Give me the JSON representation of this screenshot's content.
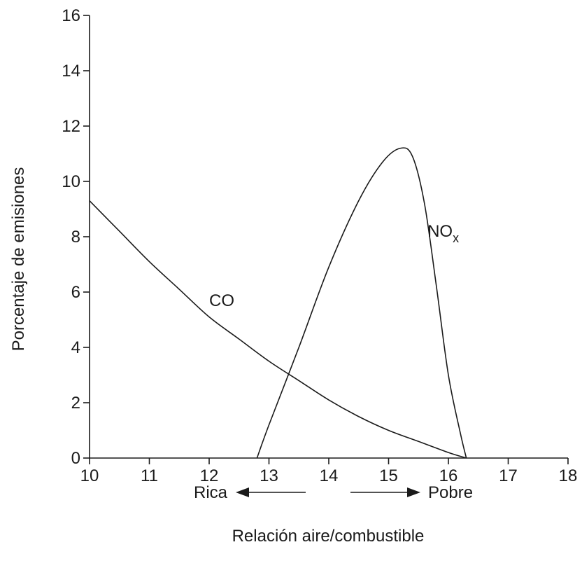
{
  "chart_data": {
    "type": "line",
    "xlabel": "Relación aire/combustible",
    "ylabel": "Porcentaje de emisiones",
    "xlim": [
      10,
      18
    ],
    "ylim": [
      0,
      16
    ],
    "x_ticks": [
      10,
      11,
      12,
      13,
      14,
      15,
      16,
      17,
      18
    ],
    "y_ticks": [
      0,
      2,
      4,
      6,
      8,
      10,
      12,
      14,
      16
    ],
    "grid": false,
    "series": [
      {
        "name": "CO",
        "label_main": "CO",
        "label_sub": "",
        "x": [
          10,
          10.5,
          11,
          11.5,
          12,
          12.5,
          13,
          13.5,
          14,
          14.5,
          15,
          15.5,
          16,
          16.3
        ],
        "y": [
          9.3,
          8.2,
          7.1,
          6.1,
          5.1,
          4.3,
          3.5,
          2.8,
          2.1,
          1.5,
          1.0,
          0.6,
          0.2,
          0.0
        ]
      },
      {
        "name": "NOx",
        "label_main": "NO",
        "label_sub": "x",
        "x": [
          12.8,
          13.0,
          13.5,
          14.0,
          14.5,
          14.9,
          15.2,
          15.4,
          15.6,
          15.8,
          16.0,
          16.2,
          16.3
        ],
        "y": [
          0.0,
          1.2,
          4.0,
          6.9,
          9.3,
          10.7,
          11.2,
          10.9,
          9.2,
          6.2,
          3.0,
          0.9,
          0.0
        ]
      }
    ],
    "direction_labels": {
      "left": "Rica",
      "right": "Pobre"
    }
  }
}
